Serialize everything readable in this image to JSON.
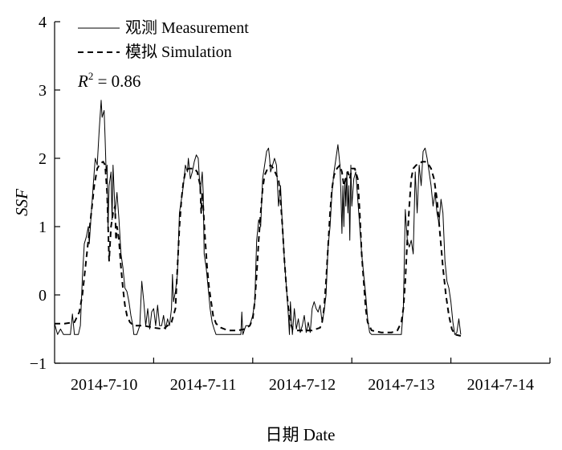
{
  "chart_data": {
    "type": "line",
    "xlabel": "日期 Date",
    "ylabel": "SSF",
    "ylim": [
      -1,
      4
    ],
    "yticks": [
      -1,
      0,
      1,
      2,
      3,
      4
    ],
    "xlim": [
      0,
      5
    ],
    "x_day_labels": [
      "2014-7-10",
      "2014-7-11",
      "2014-7-12",
      "2014-7-13",
      "2014-7-14"
    ],
    "annotation": {
      "prefix": "R",
      "sup": "2",
      "suffix": " = 0.86"
    },
    "grid": false,
    "legend_position": "top-left",
    "series": [
      {
        "name": "观测 Measurement",
        "style": "solid",
        "points": [
          [
            0.0,
            -0.42
          ],
          [
            0.03,
            -0.58
          ],
          [
            0.06,
            -0.5
          ],
          [
            0.09,
            -0.58
          ],
          [
            0.12,
            -0.58
          ],
          [
            0.16,
            -0.58
          ],
          [
            0.18,
            -0.28
          ],
          [
            0.2,
            -0.58
          ],
          [
            0.24,
            -0.58
          ],
          [
            0.26,
            -0.45
          ],
          [
            0.28,
            0.25
          ],
          [
            0.3,
            0.75
          ],
          [
            0.32,
            0.85
          ],
          [
            0.34,
            1.0
          ],
          [
            0.35,
            0.75
          ],
          [
            0.37,
            1.2
          ],
          [
            0.39,
            1.6
          ],
          [
            0.41,
            2.0
          ],
          [
            0.43,
            1.9
          ],
          [
            0.45,
            2.4
          ],
          [
            0.47,
            2.85
          ],
          [
            0.48,
            2.6
          ],
          [
            0.5,
            2.7
          ],
          [
            0.51,
            2.3
          ],
          [
            0.52,
            1.8
          ],
          [
            0.53,
            1.9
          ],
          [
            0.54,
            1.0
          ],
          [
            0.55,
            1.6
          ],
          [
            0.57,
            1.8
          ],
          [
            0.58,
            1.1
          ],
          [
            0.59,
            1.9
          ],
          [
            0.61,
            1.2
          ],
          [
            0.63,
            1.5
          ],
          [
            0.65,
            1.1
          ],
          [
            0.67,
            0.6
          ],
          [
            0.69,
            0.4
          ],
          [
            0.71,
            0.1
          ],
          [
            0.73,
            0.05
          ],
          [
            0.75,
            -0.1
          ],
          [
            0.77,
            -0.3
          ],
          [
            0.79,
            -0.45
          ],
          [
            0.8,
            -0.58
          ],
          [
            0.83,
            -0.58
          ],
          [
            0.86,
            -0.45
          ],
          [
            0.88,
            0.2
          ],
          [
            0.9,
            -0.1
          ],
          [
            0.92,
            -0.45
          ],
          [
            0.94,
            -0.2
          ],
          [
            0.96,
            -0.5
          ],
          [
            0.98,
            -0.25
          ],
          [
            1.0,
            -0.2
          ],
          [
            1.02,
            -0.45
          ],
          [
            1.04,
            -0.15
          ],
          [
            1.06,
            -0.45
          ],
          [
            1.08,
            -0.45
          ],
          [
            1.1,
            -0.3
          ],
          [
            1.12,
            -0.5
          ],
          [
            1.14,
            -0.35
          ],
          [
            1.16,
            -0.45
          ],
          [
            1.18,
            -0.2
          ],
          [
            1.19,
            0.3
          ],
          [
            1.2,
            -0.1
          ],
          [
            1.22,
            0.05
          ],
          [
            1.24,
            0.3
          ],
          [
            1.26,
            1.2
          ],
          [
            1.28,
            1.4
          ],
          [
            1.3,
            1.6
          ],
          [
            1.32,
            1.9
          ],
          [
            1.34,
            1.8
          ],
          [
            1.35,
            2.0
          ],
          [
            1.37,
            1.7
          ],
          [
            1.39,
            1.8
          ],
          [
            1.41,
            1.95
          ],
          [
            1.43,
            2.05
          ],
          [
            1.45,
            2.0
          ],
          [
            1.47,
            1.5
          ],
          [
            1.49,
            1.8
          ],
          [
            1.5,
            1.5
          ],
          [
            1.51,
            0.6
          ],
          [
            1.53,
            0.4
          ],
          [
            1.55,
            0.1
          ],
          [
            1.57,
            -0.2
          ],
          [
            1.59,
            -0.4
          ],
          [
            1.61,
            -0.5
          ],
          [
            1.63,
            -0.58
          ],
          [
            1.7,
            -0.58
          ],
          [
            1.8,
            -0.58
          ],
          [
            1.88,
            -0.58
          ],
          [
            1.89,
            -0.25
          ],
          [
            1.9,
            -0.58
          ],
          [
            1.93,
            -0.45
          ],
          [
            1.97,
            -0.45
          ],
          [
            2.0,
            -0.3
          ],
          [
            2.02,
            -0.1
          ],
          [
            2.04,
            0.8
          ],
          [
            2.06,
            1.1
          ],
          [
            2.08,
            1.0
          ],
          [
            2.1,
            1.7
          ],
          [
            2.12,
            1.9
          ],
          [
            2.14,
            2.1
          ],
          [
            2.16,
            2.15
          ],
          [
            2.17,
            2.0
          ],
          [
            2.18,
            1.8
          ],
          [
            2.2,
            1.9
          ],
          [
            2.22,
            2.0
          ],
          [
            2.24,
            1.9
          ],
          [
            2.26,
            1.3
          ],
          [
            2.28,
            1.6
          ],
          [
            2.3,
            1.0
          ],
          [
            2.32,
            0.5
          ],
          [
            2.34,
            0.1
          ],
          [
            2.36,
            -0.3
          ],
          [
            2.37,
            -0.58
          ],
          [
            2.38,
            -0.1
          ],
          [
            2.4,
            -0.58
          ],
          [
            2.42,
            -0.2
          ],
          [
            2.44,
            -0.5
          ],
          [
            2.46,
            -0.35
          ],
          [
            2.48,
            -0.55
          ],
          [
            2.5,
            -0.45
          ],
          [
            2.52,
            -0.3
          ],
          [
            2.54,
            -0.55
          ],
          [
            2.56,
            -0.4
          ],
          [
            2.58,
            -0.55
          ],
          [
            2.6,
            -0.2
          ],
          [
            2.62,
            -0.1
          ],
          [
            2.64,
            -0.2
          ],
          [
            2.66,
            -0.25
          ],
          [
            2.68,
            -0.15
          ],
          [
            2.7,
            -0.4
          ],
          [
            2.72,
            -0.25
          ],
          [
            2.74,
            0.0
          ],
          [
            2.76,
            0.7
          ],
          [
            2.78,
            1.0
          ],
          [
            2.8,
            1.5
          ],
          [
            2.82,
            1.8
          ],
          [
            2.84,
            2.0
          ],
          [
            2.86,
            2.2
          ],
          [
            2.88,
            1.9
          ],
          [
            2.89,
            1.5
          ],
          [
            2.9,
            0.9
          ],
          [
            2.91,
            1.6
          ],
          [
            2.92,
            1.0
          ],
          [
            2.93,
            1.7
          ],
          [
            2.94,
            1.3
          ],
          [
            2.95,
            1.8
          ],
          [
            2.96,
            1.2
          ],
          [
            2.97,
            1.6
          ],
          [
            2.98,
            0.8
          ],
          [
            2.99,
            1.9
          ],
          [
            3.0,
            1.3
          ],
          [
            3.02,
            1.7
          ],
          [
            3.04,
            1.8
          ],
          [
            3.06,
            1.4
          ],
          [
            3.08,
            1.0
          ],
          [
            3.1,
            0.6
          ],
          [
            3.12,
            0.3
          ],
          [
            3.14,
            0.0
          ],
          [
            3.16,
            -0.35
          ],
          [
            3.18,
            -0.55
          ],
          [
            3.2,
            -0.58
          ],
          [
            3.3,
            -0.58
          ],
          [
            3.4,
            -0.58
          ],
          [
            3.5,
            -0.58
          ],
          [
            3.52,
            -0.2
          ],
          [
            3.54,
            1.25
          ],
          [
            3.56,
            0.8
          ],
          [
            3.58,
            0.7
          ],
          [
            3.6,
            0.8
          ],
          [
            3.62,
            0.6
          ],
          [
            3.64,
            1.8
          ],
          [
            3.66,
            1.2
          ],
          [
            3.68,
            1.9
          ],
          [
            3.7,
            1.6
          ],
          [
            3.72,
            2.1
          ],
          [
            3.74,
            2.15
          ],
          [
            3.76,
            2.0
          ],
          [
            3.78,
            1.8
          ],
          [
            3.8,
            1.6
          ],
          [
            3.82,
            1.3
          ],
          [
            3.84,
            1.5
          ],
          [
            3.86,
            1.2
          ],
          [
            3.88,
            1.05
          ],
          [
            3.9,
            1.4
          ],
          [
            3.92,
            1.2
          ],
          [
            3.94,
            0.5
          ],
          [
            3.96,
            0.2
          ],
          [
            3.98,
            0.1
          ],
          [
            4.0,
            -0.1
          ],
          [
            4.02,
            -0.4
          ],
          [
            4.04,
            -0.58
          ],
          [
            4.06,
            -0.55
          ],
          [
            4.08,
            -0.35
          ],
          [
            4.1,
            -0.58
          ]
        ]
      },
      {
        "name": "模拟 Simulation",
        "style": "dashed",
        "points": [
          [
            0.0,
            -0.42
          ],
          [
            0.1,
            -0.42
          ],
          [
            0.2,
            -0.4
          ],
          [
            0.25,
            -0.25
          ],
          [
            0.28,
            0.0
          ],
          [
            0.31,
            0.4
          ],
          [
            0.34,
            0.8
          ],
          [
            0.37,
            1.2
          ],
          [
            0.4,
            1.6
          ],
          [
            0.43,
            1.85
          ],
          [
            0.46,
            1.92
          ],
          [
            0.49,
            1.95
          ],
          [
            0.51,
            1.9
          ],
          [
            0.53,
            1.5
          ],
          [
            0.55,
            0.5
          ],
          [
            0.57,
            1.0
          ],
          [
            0.59,
            1.2
          ],
          [
            0.61,
            1.3
          ],
          [
            0.62,
            0.8
          ],
          [
            0.63,
            1.0
          ],
          [
            0.65,
            0.8
          ],
          [
            0.67,
            0.4
          ],
          [
            0.69,
            0.1
          ],
          [
            0.71,
            -0.15
          ],
          [
            0.73,
            -0.3
          ],
          [
            0.76,
            -0.4
          ],
          [
            0.8,
            -0.45
          ],
          [
            0.9,
            -0.45
          ],
          [
            1.0,
            -0.48
          ],
          [
            1.1,
            -0.5
          ],
          [
            1.18,
            -0.4
          ],
          [
            1.2,
            -0.3
          ],
          [
            1.22,
            -0.2
          ],
          [
            1.24,
            0.4
          ],
          [
            1.26,
            1.0
          ],
          [
            1.28,
            1.4
          ],
          [
            1.3,
            1.65
          ],
          [
            1.32,
            1.8
          ],
          [
            1.35,
            1.85
          ],
          [
            1.38,
            1.85
          ],
          [
            1.41,
            1.85
          ],
          [
            1.44,
            1.8
          ],
          [
            1.47,
            1.6
          ],
          [
            1.48,
            1.2
          ],
          [
            1.49,
            1.5
          ],
          [
            1.5,
            1.3
          ],
          [
            1.52,
            0.8
          ],
          [
            1.54,
            0.4
          ],
          [
            1.56,
            0.1
          ],
          [
            1.58,
            -0.1
          ],
          [
            1.6,
            -0.3
          ],
          [
            1.63,
            -0.42
          ],
          [
            1.68,
            -0.48
          ],
          [
            1.75,
            -0.52
          ],
          [
            1.85,
            -0.52
          ],
          [
            1.92,
            -0.5
          ],
          [
            1.97,
            -0.45
          ],
          [
            2.0,
            -0.35
          ],
          [
            2.02,
            -0.1
          ],
          [
            2.04,
            0.3
          ],
          [
            2.06,
            0.8
          ],
          [
            2.08,
            1.2
          ],
          [
            2.1,
            1.55
          ],
          [
            2.12,
            1.75
          ],
          [
            2.15,
            1.85
          ],
          [
            2.18,
            1.9
          ],
          [
            2.21,
            1.85
          ],
          [
            2.24,
            1.75
          ],
          [
            2.26,
            1.7
          ],
          [
            2.28,
            1.4
          ],
          [
            2.3,
            1.0
          ],
          [
            2.32,
            0.5
          ],
          [
            2.34,
            0.1
          ],
          [
            2.36,
            -0.2
          ],
          [
            2.38,
            -0.4
          ],
          [
            2.4,
            -0.5
          ],
          [
            2.43,
            -0.52
          ],
          [
            2.5,
            -0.52
          ],
          [
            2.6,
            -0.52
          ],
          [
            2.68,
            -0.48
          ],
          [
            2.7,
            -0.4
          ],
          [
            2.72,
            -0.2
          ],
          [
            2.74,
            0.2
          ],
          [
            2.76,
            0.7
          ],
          [
            2.78,
            1.2
          ],
          [
            2.8,
            1.55
          ],
          [
            2.82,
            1.75
          ],
          [
            2.85,
            1.85
          ],
          [
            2.88,
            1.9
          ],
          [
            2.9,
            1.8
          ],
          [
            2.92,
            1.6
          ],
          [
            2.94,
            1.7
          ],
          [
            2.96,
            1.8
          ],
          [
            2.98,
            1.7
          ],
          [
            3.0,
            1.85
          ],
          [
            3.03,
            1.85
          ],
          [
            3.06,
            1.7
          ],
          [
            3.08,
            1.2
          ],
          [
            3.1,
            0.6
          ],
          [
            3.12,
            0.2
          ],
          [
            3.14,
            -0.2
          ],
          [
            3.16,
            -0.4
          ],
          [
            3.2,
            -0.52
          ],
          [
            3.3,
            -0.55
          ],
          [
            3.4,
            -0.55
          ],
          [
            3.46,
            -0.52
          ],
          [
            3.5,
            -0.4
          ],
          [
            3.52,
            -0.2
          ],
          [
            3.54,
            0.2
          ],
          [
            3.56,
            0.8
          ],
          [
            3.58,
            1.3
          ],
          [
            3.6,
            1.7
          ],
          [
            3.62,
            1.85
          ],
          [
            3.65,
            1.9
          ],
          [
            3.68,
            1.92
          ],
          [
            3.71,
            1.95
          ],
          [
            3.74,
            1.95
          ],
          [
            3.77,
            1.92
          ],
          [
            3.8,
            1.85
          ],
          [
            3.83,
            1.7
          ],
          [
            3.86,
            1.4
          ],
          [
            3.89,
            0.9
          ],
          [
            3.92,
            0.4
          ],
          [
            3.95,
            0.0
          ],
          [
            3.98,
            -0.3
          ],
          [
            4.01,
            -0.5
          ],
          [
            4.04,
            -0.58
          ],
          [
            4.1,
            -0.6
          ]
        ]
      }
    ]
  }
}
